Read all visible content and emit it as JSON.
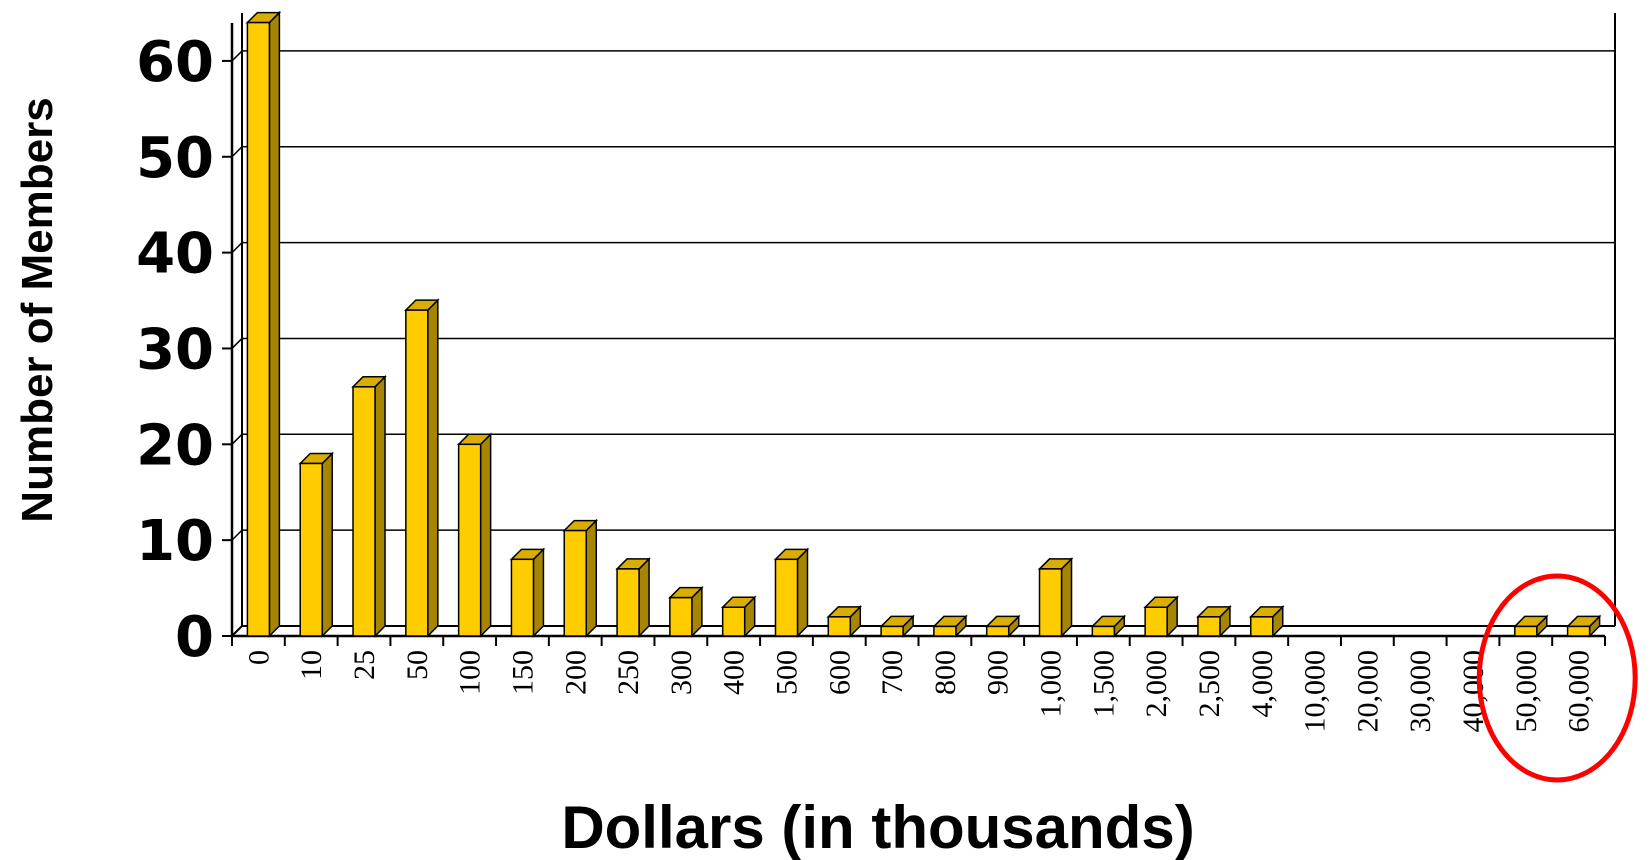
{
  "chart_data": {
    "type": "bar",
    "xlabel": "Dollars (in thousands)",
    "ylabel": "Number of Members",
    "categories": [
      "0",
      "10",
      "25",
      "50",
      "100",
      "150",
      "200",
      "250",
      "300",
      "400",
      "500",
      "600",
      "700",
      "800",
      "900",
      "1,000",
      "1,500",
      "2,000",
      "2,500",
      "4,000",
      "10,000",
      "20,000",
      "30,000",
      "40,000",
      "50,000",
      "60,000"
    ],
    "values": [
      64,
      18,
      26,
      34,
      20,
      8,
      11,
      7,
      4,
      3,
      8,
      2,
      1,
      1,
      1,
      7,
      1,
      3,
      2,
      2,
      0,
      0,
      0,
      0,
      1,
      1
    ],
    "ylim": [
      0,
      65
    ],
    "yticks": [
      "0",
      "10",
      "20",
      "30",
      "40",
      "50",
      "60"
    ],
    "grid": true,
    "style": "3d-bars",
    "colors": {
      "bar_front": "#FFCC00",
      "bar_side": "#A68500",
      "bar_top": "#D9AE00",
      "outline": "#000000",
      "highlight_circle": "#FF0000"
    },
    "annotation": {
      "shape": "ellipse",
      "color": "#FF0000",
      "encloses_categories": [
        "50,000",
        "60,000"
      ]
    }
  }
}
